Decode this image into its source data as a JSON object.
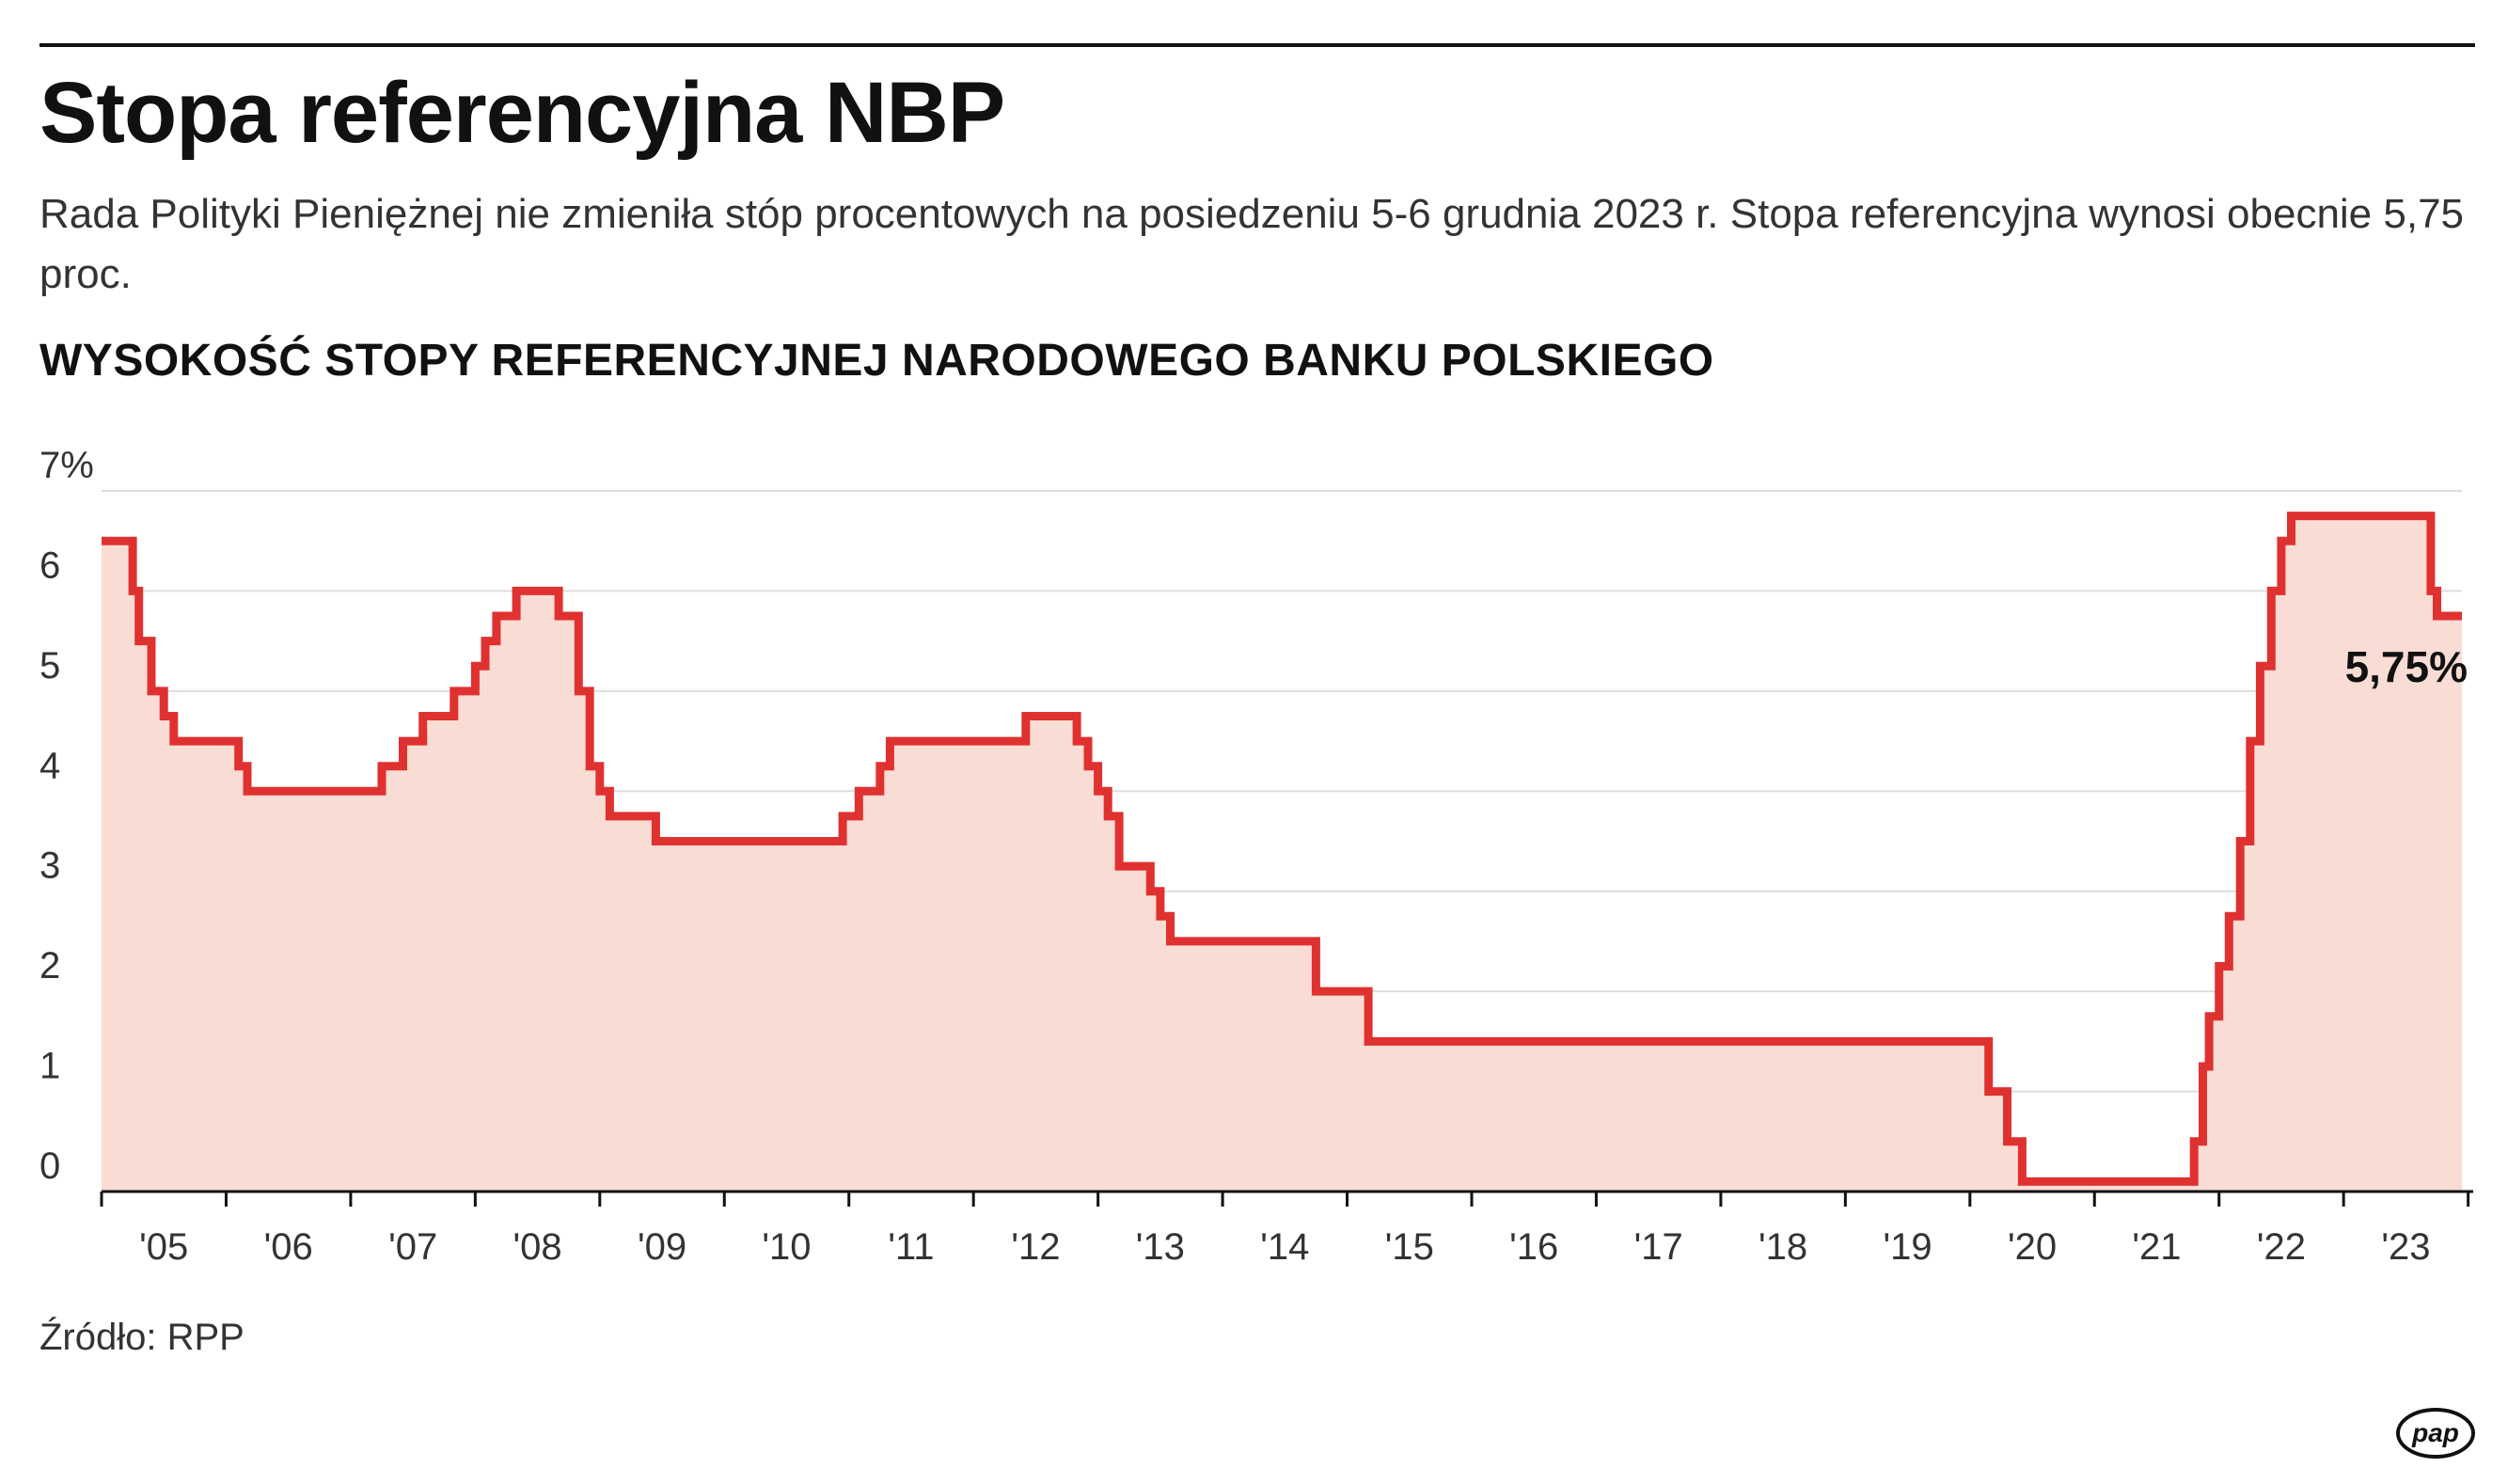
{
  "header": {
    "title": "Stopa referencyjna NBP",
    "subtitle": "Rada Polityki Pieniężnej nie zmieniła stóp procentowych na posiedzeniu 5-6 grudnia 2023 r. Stopa referencyjna wynosi obecnie 5,75 proc."
  },
  "chart_data": {
    "type": "line",
    "style": "step-area",
    "title": "WYSOKOŚĆ STOPY REFERENCYJNEJ NARODOWEGO BANKU POLSKIEGO",
    "xlabel": "",
    "ylabel": "",
    "ylim": [
      0,
      7
    ],
    "xlim": [
      2005.0,
      2023.95
    ],
    "y_ticks": [
      0,
      1,
      2,
      3,
      4,
      5,
      6,
      7
    ],
    "y_tick_labels": [
      "0",
      "1",
      "2",
      "3",
      "4",
      "5",
      "6",
      "7%"
    ],
    "x_tick_labels": [
      "'05",
      "'06",
      "'07",
      "'08",
      "'09",
      "'10",
      "'11",
      "'12",
      "'13",
      "'14",
      "'15",
      "'16",
      "'17",
      "'18",
      "'19",
      "'20",
      "'21",
      "'22",
      "'23"
    ],
    "grid": true,
    "line_color": "#e03131",
    "fill_color": "#f9dcd3",
    "annotation": {
      "text": "5,75%",
      "x": 2023.9,
      "y": 5.75
    },
    "series": [
      {
        "x": [
          2005.0,
          2005.25,
          2005.3,
          2005.4,
          2005.5,
          2005.58,
          2005.66,
          2006.1,
          2006.17,
          2007.25,
          2007.42,
          2007.58,
          2007.83,
          2008.0,
          2008.08,
          2008.17,
          2008.33,
          2008.67,
          2008.83,
          2008.92,
          2009.0,
          2009.08,
          2009.25,
          2009.45,
          2010.95,
          2011.08,
          2011.25,
          2011.33,
          2011.42,
          2012.42,
          2012.83,
          2012.92,
          2013.0,
          2013.08,
          2013.17,
          2013.42,
          2013.5,
          2013.58,
          2014.75,
          2015.17,
          2020.15,
          2020.3,
          2020.42,
          2021.8,
          2021.87,
          2021.92,
          2022.0,
          2022.08,
          2022.17,
          2022.25,
          2022.33,
          2022.42,
          2022.5,
          2022.58,
          2022.67,
          2022.83,
          2023.7,
          2023.75,
          2023.95
        ],
        "y": [
          6.5,
          6.0,
          5.5,
          5.0,
          4.75,
          4.5,
          4.5,
          4.25,
          4.0,
          4.25,
          4.5,
          4.75,
          5.0,
          5.25,
          5.5,
          5.75,
          6.0,
          5.75,
          5.0,
          4.25,
          4.0,
          3.75,
          3.75,
          3.5,
          3.75,
          4.0,
          4.25,
          4.5,
          4.5,
          4.75,
          4.5,
          4.25,
          4.0,
          3.75,
          3.25,
          3.0,
          2.75,
          2.5,
          2.0,
          1.5,
          1.0,
          0.5,
          0.1,
          0.5,
          1.25,
          1.75,
          2.25,
          2.75,
          3.5,
          4.5,
          5.25,
          6.0,
          6.5,
          6.75,
          6.75,
          6.75,
          6.0,
          5.75,
          5.75
        ]
      }
    ]
  },
  "footer": {
    "source": "Źródło: RPP",
    "logo_text": "pap"
  }
}
